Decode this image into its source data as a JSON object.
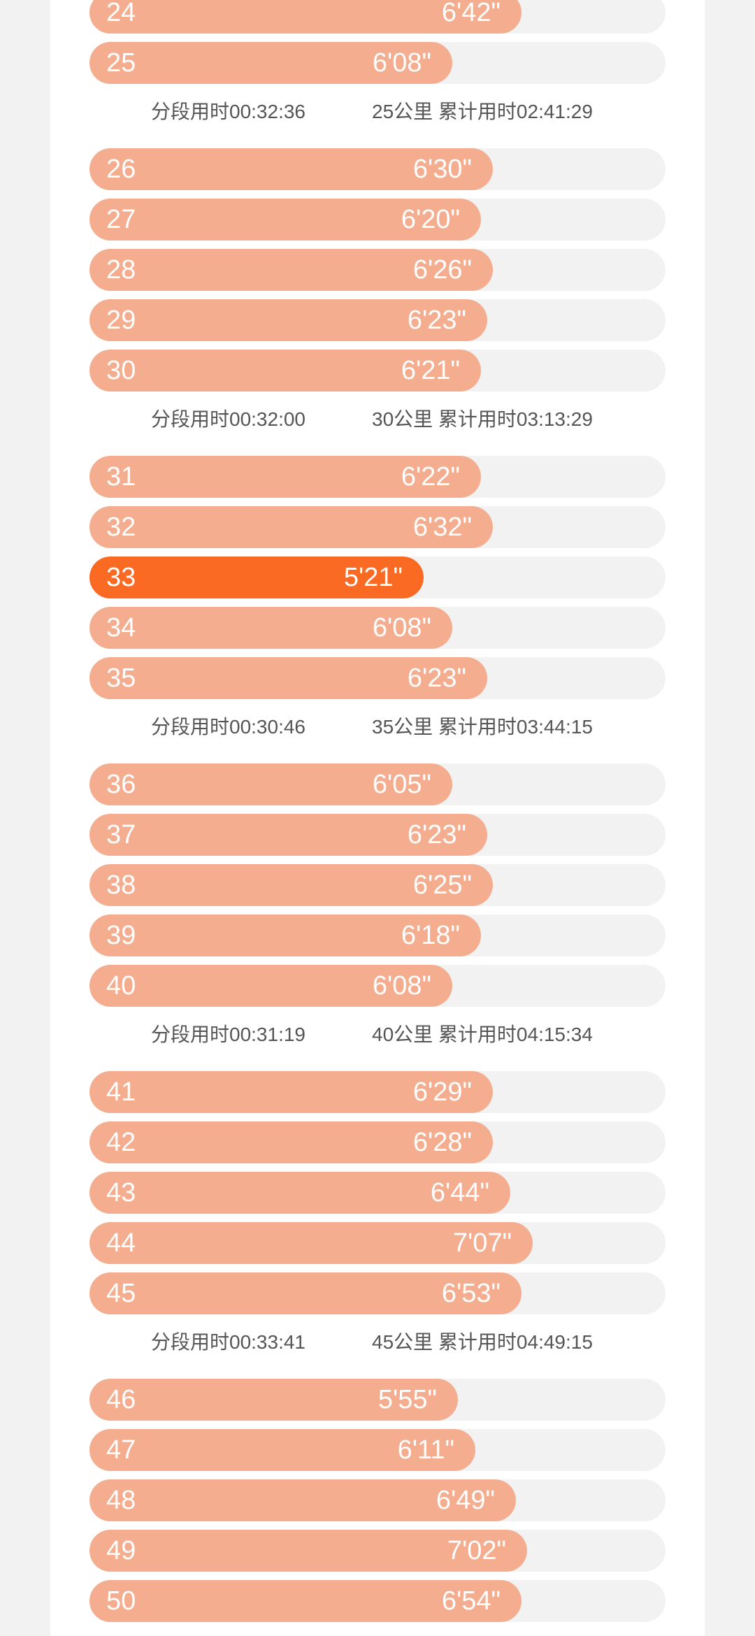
{
  "colors": {
    "bar": "#f4ad8f",
    "bar_fastest": "#fb6a22",
    "track": "#f2f2f2",
    "summary_text": "#555555"
  },
  "rows": [
    {
      "km": "24",
      "pace": "6'42\"",
      "fraction": 0.75
    },
    {
      "km": "25",
      "pace": "6'08\"",
      "fraction": 0.63
    },
    {
      "km": "26",
      "pace": "6'30\"",
      "fraction": 0.7
    },
    {
      "km": "27",
      "pace": "6'20\"",
      "fraction": 0.68
    },
    {
      "km": "28",
      "pace": "6'26\"",
      "fraction": 0.7
    },
    {
      "km": "29",
      "pace": "6'23\"",
      "fraction": 0.69
    },
    {
      "km": "30",
      "pace": "6'21\"",
      "fraction": 0.68
    },
    {
      "km": "31",
      "pace": "6'22\"",
      "fraction": 0.68
    },
    {
      "km": "32",
      "pace": "6'32\"",
      "fraction": 0.7
    },
    {
      "km": "33",
      "pace": "5'21\"",
      "fraction": 0.58,
      "fastest": true
    },
    {
      "km": "34",
      "pace": "6'08\"",
      "fraction": 0.63
    },
    {
      "km": "35",
      "pace": "6'23\"",
      "fraction": 0.69
    },
    {
      "km": "36",
      "pace": "6'05\"",
      "fraction": 0.63
    },
    {
      "km": "37",
      "pace": "6'23\"",
      "fraction": 0.69
    },
    {
      "km": "38",
      "pace": "6'25\"",
      "fraction": 0.7
    },
    {
      "km": "39",
      "pace": "6'18\"",
      "fraction": 0.68
    },
    {
      "km": "40",
      "pace": "6'08\"",
      "fraction": 0.63
    },
    {
      "km": "41",
      "pace": "6'29\"",
      "fraction": 0.7
    },
    {
      "km": "42",
      "pace": "6'28\"",
      "fraction": 0.7
    },
    {
      "km": "43",
      "pace": "6'44\"",
      "fraction": 0.73
    },
    {
      "km": "44",
      "pace": "7'07\"",
      "fraction": 0.77
    },
    {
      "km": "45",
      "pace": "6'53\"",
      "fraction": 0.75
    },
    {
      "km": "46",
      "pace": "5'55\"",
      "fraction": 0.64
    },
    {
      "km": "47",
      "pace": "6'11\"",
      "fraction": 0.67
    },
    {
      "km": "48",
      "pace": "6'49\"",
      "fraction": 0.74
    },
    {
      "km": "49",
      "pace": "7'02\"",
      "fraction": 0.76
    },
    {
      "km": "50",
      "pace": "6'54\"",
      "fraction": 0.75
    }
  ],
  "summaries": [
    {
      "after_km": "25",
      "segment": "分段用时00:32:36",
      "cumulative": "25公里 累计用时02:41:29"
    },
    {
      "after_km": "30",
      "segment": "分段用时00:32:00",
      "cumulative": "30公里 累计用时03:13:29"
    },
    {
      "after_km": "35",
      "segment": "分段用时00:30:46",
      "cumulative": "35公里 累计用时03:44:15"
    },
    {
      "after_km": "40",
      "segment": "分段用时00:31:19",
      "cumulative": "40公里 累计用时04:15:34"
    },
    {
      "after_km": "45",
      "segment": "分段用时00:33:41",
      "cumulative": "45公里 累计用时04:49:15"
    }
  ]
}
